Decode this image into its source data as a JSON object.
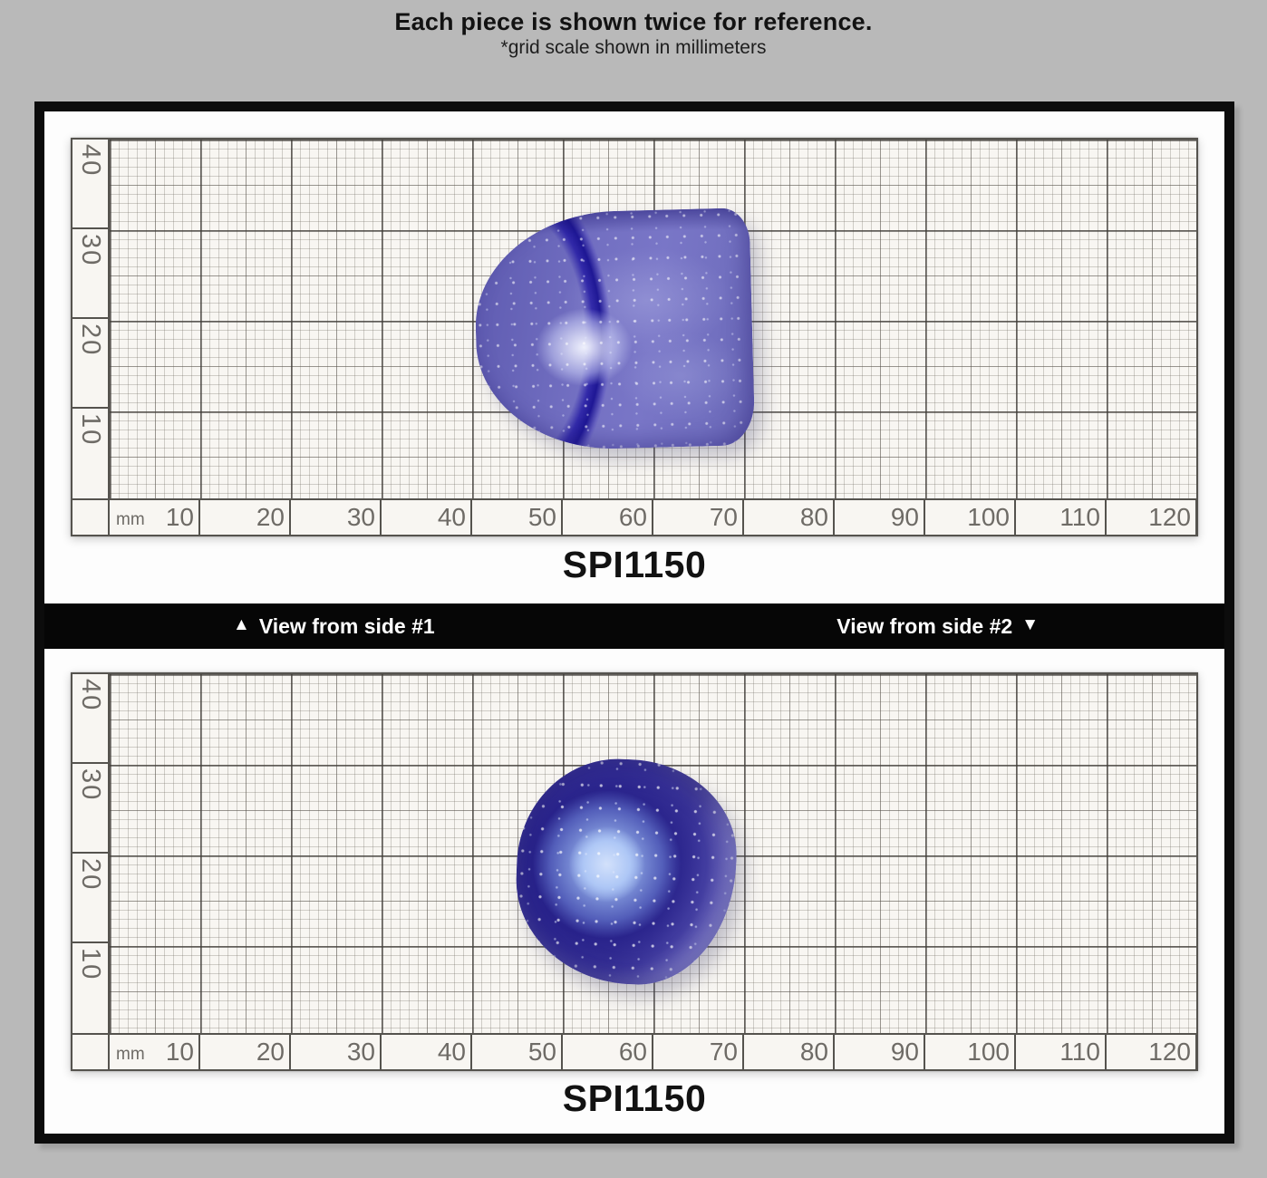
{
  "header": {
    "title": "Each piece is shown twice for reference.",
    "subtitle": "*grid scale shown in millimeters"
  },
  "divider": {
    "up_arrow": "▲",
    "left_label": "View from side #1",
    "right_label": "View from side #2",
    "down_arrow": "▼"
  },
  "panels": [
    {
      "sku": "SPI1150",
      "view": "side #1"
    },
    {
      "sku": "SPI1150",
      "view": "side #2"
    }
  ],
  "ruler": {
    "unit": "mm",
    "horizontal_labels": [
      "10",
      "20",
      "30",
      "40",
      "50",
      "60",
      "70",
      "80",
      "90",
      "100",
      "110",
      "120"
    ],
    "vertical_labels": [
      "40",
      "30",
      "20",
      "10"
    ]
  },
  "colors": {
    "page_background": "#b9b9b9",
    "frame_black": "#0c0c0c",
    "paper": "#f8f6f2",
    "grid_line": "#55534e",
    "ruler_text": "#6e6b66",
    "piece_body_blue": "#7370c2",
    "piece_dark_blue": "#1a10a0",
    "piece_center_glow": "#aac6f2",
    "piece_rim_periwinkle": "#908dd3"
  }
}
